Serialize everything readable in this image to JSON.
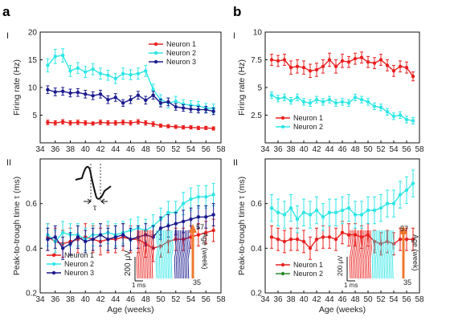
{
  "labels": {
    "panel_a": "a",
    "panel_b": "b",
    "row_i": "I",
    "row_ii": "II",
    "tau": "τ",
    "scale_uv": "200 μV",
    "scale_ms": "1 ms",
    "age_week": "Age (week)",
    "age_min": "35",
    "age_max": "57"
  },
  "colors": {
    "neuron1": "#e8201f",
    "neuron2": "#2ee6e6",
    "neuron3": "#1b1a8e",
    "neuron2_legend_b_lower": "#2a8a2a"
  },
  "chart_data": [
    {
      "id": "a1",
      "type": "line",
      "panel": "a",
      "title": "",
      "xlabel": "",
      "ylabel": "Firing rate (Hz)",
      "xlim": [
        34,
        58
      ],
      "ylim": [
        0,
        20
      ],
      "xticks": [
        34,
        36,
        38,
        40,
        42,
        44,
        46,
        48,
        50,
        52,
        54,
        56,
        58
      ],
      "yticks": [
        5,
        10,
        15,
        20
      ],
      "legend_position": "top-right",
      "x": [
        35,
        36,
        37,
        38,
        39,
        40,
        41,
        42,
        43,
        44,
        45,
        46,
        47,
        48,
        49,
        50,
        51,
        52,
        53,
        54,
        55,
        56,
        57
      ],
      "series": [
        {
          "name": "Neuron 1",
          "color_key": "neuron1",
          "values": [
            3.7,
            3.6,
            3.8,
            3.6,
            3.7,
            3.6,
            3.5,
            3.7,
            3.6,
            3.6,
            3.7,
            3.6,
            3.8,
            3.6,
            3.4,
            3.1,
            3.0,
            2.9,
            2.8,
            2.8,
            2.7,
            2.7,
            2.6
          ],
          "err": [
            0.4,
            0.4,
            0.4,
            0.4,
            0.4,
            0.4,
            0.3,
            0.4,
            0.4,
            0.4,
            0.4,
            0.4,
            0.4,
            0.4,
            0.4,
            0.3,
            0.3,
            0.3,
            0.3,
            0.3,
            0.3,
            0.3,
            0.3
          ]
        },
        {
          "name": "Neuron 2",
          "color_key": "neuron2",
          "values": [
            14.0,
            15.6,
            15.8,
            13.0,
            13.5,
            12.8,
            13.3,
            12.5,
            12.2,
            11.6,
            12.5,
            12.3,
            12.5,
            13.0,
            9.6,
            7.8,
            7.2,
            7.5,
            7.0,
            6.8,
            6.7,
            6.3,
            6.2
          ],
          "err": [
            1.2,
            1.3,
            1.2,
            1.0,
            1.0,
            1.0,
            1.0,
            1.0,
            0.9,
            0.9,
            1.0,
            0.9,
            1.0,
            1.0,
            1.0,
            0.9,
            0.9,
            0.9,
            0.8,
            0.8,
            0.8,
            0.8,
            0.8
          ]
        },
        {
          "name": "Neuron 3",
          "color_key": "neuron3",
          "values": [
            9.6,
            9.2,
            9.3,
            9.0,
            9.1,
            8.8,
            8.5,
            8.8,
            7.8,
            8.2,
            7.2,
            7.8,
            8.6,
            7.7,
            8.6,
            7.2,
            7.4,
            6.5,
            6.3,
            6.1,
            6.0,
            6.0,
            5.7
          ],
          "err": [
            0.7,
            0.7,
            0.7,
            0.7,
            0.7,
            0.7,
            0.7,
            0.7,
            0.7,
            0.7,
            0.6,
            0.7,
            0.7,
            0.7,
            0.7,
            0.7,
            0.7,
            0.6,
            0.6,
            0.6,
            0.6,
            0.6,
            0.6
          ]
        }
      ]
    },
    {
      "id": "a2",
      "type": "line",
      "panel": "a",
      "title": "",
      "xlabel": "Age (weeks)",
      "ylabel": "Peak-to-trough time τ (ms)",
      "xlim": [
        34,
        58
      ],
      "ylim": [
        0.2,
        0.8
      ],
      "xticks": [
        34,
        36,
        38,
        40,
        42,
        44,
        46,
        48,
        50,
        52,
        54,
        56,
        58
      ],
      "yticks": [
        0.2,
        0.4,
        0.6
      ],
      "legend_position": "bottom-left",
      "x": [
        35,
        36,
        37,
        38,
        39,
        40,
        41,
        42,
        43,
        44,
        45,
        46,
        47,
        48,
        49,
        50,
        51,
        52,
        53,
        54,
        55,
        56,
        57
      ],
      "series": [
        {
          "name": "Neuron 1",
          "color_key": "neuron1",
          "values": [
            0.45,
            0.43,
            0.42,
            0.43,
            0.44,
            0.45,
            0.44,
            0.43,
            0.44,
            0.44,
            0.45,
            0.44,
            0.44,
            0.42,
            0.4,
            0.41,
            0.43,
            0.44,
            0.44,
            0.45,
            0.46,
            0.47,
            0.48
          ],
          "err": [
            0.06,
            0.06,
            0.06,
            0.06,
            0.06,
            0.06,
            0.06,
            0.06,
            0.06,
            0.06,
            0.06,
            0.06,
            0.06,
            0.06,
            0.06,
            0.05,
            0.05,
            0.05,
            0.05,
            0.05,
            0.05,
            0.05,
            0.05
          ]
        },
        {
          "name": "Neuron 2",
          "color_key": "neuron2",
          "values": [
            0.46,
            0.43,
            0.47,
            0.46,
            0.46,
            0.44,
            0.46,
            0.46,
            0.47,
            0.46,
            0.47,
            0.48,
            0.49,
            0.48,
            0.5,
            0.53,
            0.56,
            0.56,
            0.6,
            0.62,
            0.63,
            0.63,
            0.64
          ],
          "err": [
            0.05,
            0.05,
            0.05,
            0.05,
            0.05,
            0.05,
            0.05,
            0.05,
            0.05,
            0.05,
            0.05,
            0.05,
            0.05,
            0.05,
            0.05,
            0.05,
            0.05,
            0.05,
            0.05,
            0.05,
            0.05,
            0.05,
            0.05
          ]
        },
        {
          "name": "Neuron 3",
          "color_key": "neuron3",
          "values": [
            0.44,
            0.45,
            0.4,
            0.42,
            0.45,
            0.43,
            0.44,
            0.46,
            0.44,
            0.45,
            0.46,
            0.44,
            0.45,
            0.46,
            0.45,
            0.49,
            0.5,
            0.51,
            0.52,
            0.53,
            0.54,
            0.54,
            0.55
          ],
          "err": [
            0.05,
            0.05,
            0.05,
            0.05,
            0.05,
            0.05,
            0.05,
            0.05,
            0.05,
            0.05,
            0.05,
            0.05,
            0.05,
            0.05,
            0.05,
            0.05,
            0.05,
            0.05,
            0.05,
            0.05,
            0.05,
            0.05,
            0.05
          ]
        }
      ]
    },
    {
      "id": "b1",
      "type": "line",
      "panel": "b",
      "title": "",
      "xlabel": "",
      "ylabel": "Firing rate (Hz)",
      "xlim": [
        34,
        58
      ],
      "ylim": [
        0,
        10
      ],
      "xticks": [
        34,
        36,
        38,
        40,
        42,
        44,
        46,
        48,
        50,
        52,
        54,
        56,
        58
      ],
      "yticks": [
        2.5,
        5,
        7.5,
        10
      ],
      "legend_position": "bottom-left",
      "x": [
        35,
        36,
        37,
        38,
        39,
        40,
        41,
        42,
        43,
        44,
        45,
        46,
        47,
        48,
        49,
        50,
        51,
        52,
        53,
        54,
        55,
        56,
        57
      ],
      "series": [
        {
          "name": "Neuron 1",
          "color_key": "neuron1",
          "values": [
            7.5,
            7.4,
            7.5,
            6.8,
            6.9,
            6.8,
            6.5,
            6.6,
            6.9,
            7.5,
            6.9,
            7.4,
            7.3,
            7.6,
            7.7,
            7.3,
            7.2,
            7.5,
            7.0,
            6.5,
            6.9,
            6.8,
            6.0
          ],
          "err": [
            0.5,
            0.5,
            0.5,
            0.6,
            0.6,
            0.6,
            0.6,
            0.6,
            0.6,
            0.6,
            0.6,
            0.6,
            0.5,
            0.5,
            0.5,
            0.5,
            0.5,
            0.5,
            0.5,
            0.5,
            0.5,
            0.5,
            0.4
          ]
        },
        {
          "name": "Neuron 2",
          "color_key": "neuron2",
          "values": [
            4.3,
            4.0,
            4.1,
            3.8,
            4.1,
            3.7,
            3.6,
            3.9,
            3.7,
            3.9,
            3.6,
            3.7,
            3.6,
            4.1,
            3.9,
            3.7,
            3.3,
            3.2,
            2.8,
            2.4,
            2.5,
            2.1,
            2.0
          ],
          "err": [
            0.3,
            0.3,
            0.3,
            0.3,
            0.3,
            0.3,
            0.3,
            0.3,
            0.3,
            0.3,
            0.3,
            0.3,
            0.3,
            0.3,
            0.3,
            0.3,
            0.3,
            0.3,
            0.3,
            0.3,
            0.3,
            0.3,
            0.3
          ]
        }
      ]
    },
    {
      "id": "b2",
      "type": "line",
      "panel": "b",
      "title": "",
      "xlabel": "Age (weeks)",
      "ylabel": "Peak-to-trough time τ (ms)",
      "xlim": [
        34,
        58
      ],
      "ylim": [
        0.2,
        0.8
      ],
      "xticks": [
        34,
        36,
        38,
        40,
        42,
        44,
        46,
        48,
        50,
        52,
        54,
        56,
        58
      ],
      "yticks": [
        0.2,
        0.4,
        0.6
      ],
      "legend_position": "bottom-left",
      "x": [
        35,
        36,
        37,
        38,
        39,
        40,
        41,
        42,
        43,
        44,
        45,
        46,
        47,
        48,
        49,
        50,
        51,
        52,
        53,
        54,
        55,
        56,
        57
      ],
      "series": [
        {
          "name": "Neuron 1",
          "color_key": "neuron1",
          "values": [
            0.45,
            0.44,
            0.43,
            0.44,
            0.44,
            0.43,
            0.4,
            0.44,
            0.45,
            0.45,
            0.44,
            0.47,
            0.46,
            0.46,
            0.45,
            0.46,
            0.43,
            0.42,
            0.43,
            0.42,
            0.44,
            0.44,
            0.44
          ],
          "err": [
            0.05,
            0.05,
            0.05,
            0.05,
            0.05,
            0.05,
            0.05,
            0.05,
            0.05,
            0.05,
            0.05,
            0.05,
            0.05,
            0.05,
            0.05,
            0.05,
            0.05,
            0.05,
            0.05,
            0.05,
            0.05,
            0.05,
            0.05
          ]
        },
        {
          "name": "Neuron 2",
          "color_key": "neuron2",
          "values": [
            0.58,
            0.56,
            0.55,
            0.58,
            0.53,
            0.56,
            0.55,
            0.57,
            0.54,
            0.56,
            0.56,
            0.57,
            0.58,
            0.55,
            0.55,
            0.57,
            0.57,
            0.58,
            0.6,
            0.6,
            0.64,
            0.66,
            0.69
          ],
          "err": [
            0.06,
            0.06,
            0.06,
            0.06,
            0.06,
            0.06,
            0.06,
            0.06,
            0.06,
            0.06,
            0.06,
            0.06,
            0.06,
            0.06,
            0.06,
            0.06,
            0.06,
            0.06,
            0.06,
            0.06,
            0.06,
            0.06,
            0.06
          ]
        }
      ]
    }
  ]
}
